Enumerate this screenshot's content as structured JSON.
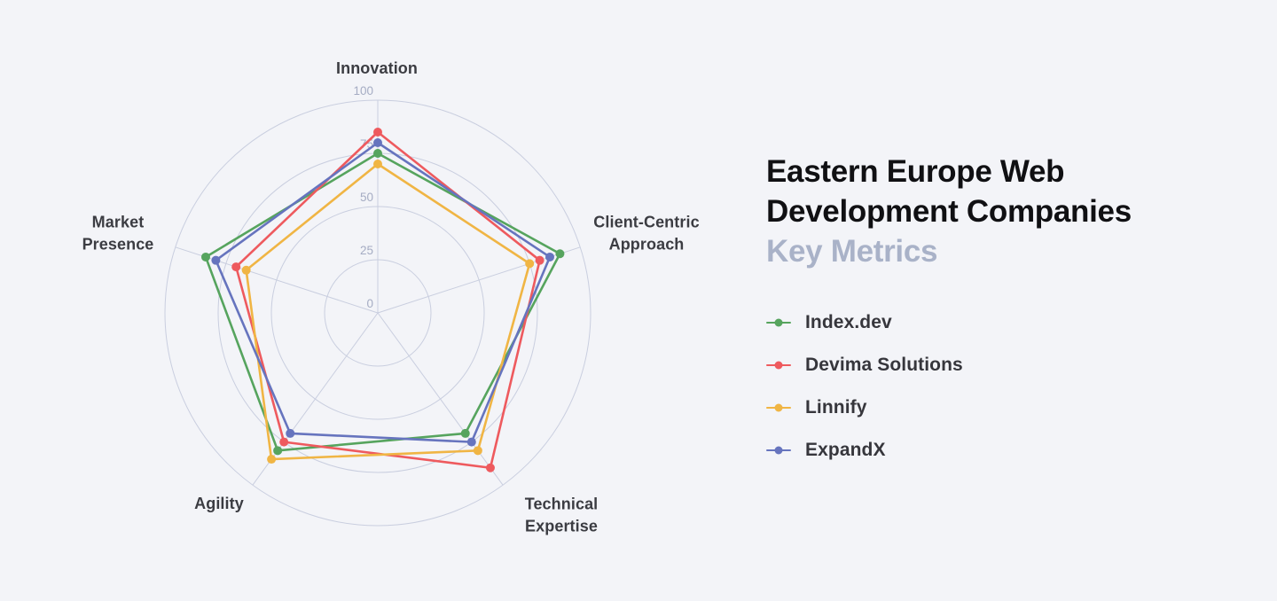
{
  "header": {
    "title": "Eastern Europe Web\nDevelopment Companies",
    "subtitle": "Key Metrics"
  },
  "chart_data": {
    "type": "radar",
    "axes": [
      "Innovation",
      "Client-Centric Approach",
      "Technical Expertise",
      "Agility",
      "Market Presence"
    ],
    "max": 100,
    "ticks": [
      0,
      25,
      50,
      75,
      100
    ],
    "grid": "circular-rings-with-spokes",
    "legend_position": "right",
    "series": [
      {
        "name": "Index.dev",
        "color": "#56A45E",
        "values": [
          75,
          90,
          70,
          80,
          85
        ]
      },
      {
        "name": "Devima Solutions",
        "color": "#EE5A5E",
        "values": [
          85,
          80,
          90,
          75,
          70
        ]
      },
      {
        "name": "Linnify",
        "color": "#F0B544",
        "values": [
          70,
          75,
          80,
          85,
          65
        ]
      },
      {
        "name": "ExpandX",
        "color": "#6674BE",
        "values": [
          80,
          85,
          75,
          70,
          80
        ]
      }
    ]
  },
  "colors": {
    "background": "#F3F4F8",
    "grid": "#C9CEDF",
    "tick_label": "#A5ACC3",
    "axis_label": "#3B3C42",
    "title": "#101013",
    "subtitle": "#A9B2C8",
    "legend_text": "#36363C"
  }
}
